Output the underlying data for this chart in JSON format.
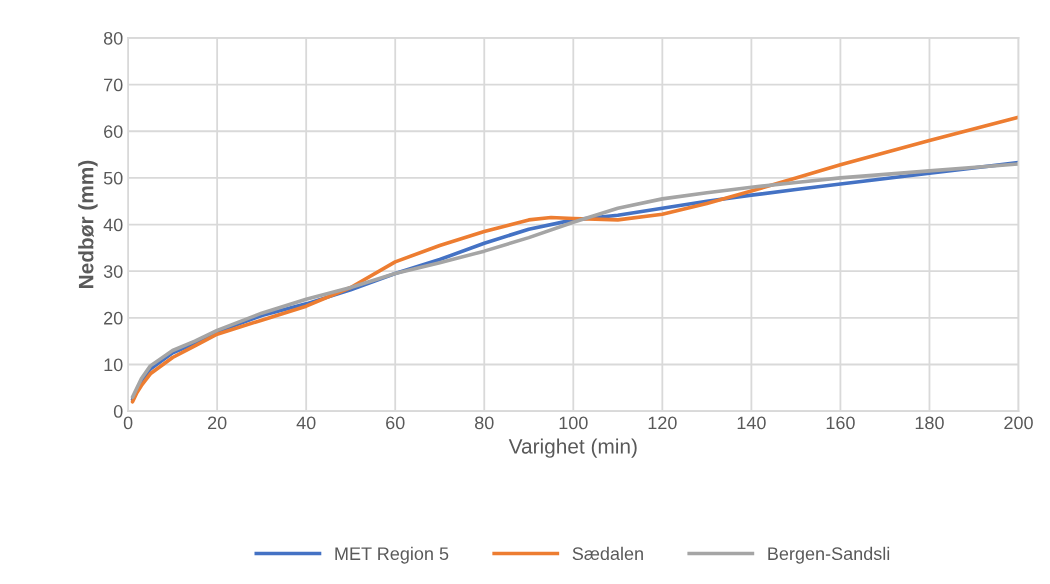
{
  "chart_data": {
    "type": "line",
    "xlabel": "Varighet (min)",
    "ylabel": "Nedbør (mm)",
    "xlim": [
      0,
      200
    ],
    "xticks": [
      0,
      20,
      40,
      60,
      80,
      100,
      120,
      140,
      160,
      180,
      200
    ],
    "ylim": [
      0,
      80
    ],
    "yticks": [
      0,
      10,
      20,
      30,
      40,
      50,
      60,
      70,
      80
    ],
    "grid": true,
    "legend": "bottom",
    "marker": "none",
    "line_style": "solid",
    "series": [
      {
        "name": "MET Region 5",
        "color": "#4472c4",
        "x": [
          1,
          3,
          5,
          10,
          15,
          20,
          30,
          40,
          50,
          60,
          70,
          80,
          90,
          100,
          110,
          120,
          130,
          140,
          150,
          160,
          180,
          200
        ],
        "values": [
          2.5,
          6.5,
          9,
          12.5,
          14.5,
          17,
          20.5,
          23,
          26,
          29.5,
          32.5,
          36,
          39,
          41,
          42,
          43.5,
          45,
          46.3,
          47.5,
          48.7,
          51,
          53.3
        ]
      },
      {
        "name": "Sædalen",
        "color": "#ed7d31",
        "x": [
          1,
          2,
          3,
          5,
          10,
          15,
          20,
          30,
          40,
          50,
          60,
          70,
          80,
          90,
          95,
          100,
          110,
          120,
          130,
          140,
          150,
          160,
          180,
          200
        ],
        "values": [
          2,
          4,
          5.5,
          8,
          11.5,
          14,
          16.5,
          19.5,
          22.5,
          26.5,
          32,
          35.5,
          38.5,
          41,
          41.5,
          41.3,
          41,
          42.2,
          44.5,
          47.2,
          50,
          52.8,
          58,
          63
        ]
      },
      {
        "name": "Bergen-Sandsli",
        "color": "#a5a5a5",
        "x": [
          1,
          2,
          3,
          5,
          10,
          15,
          20,
          30,
          40,
          50,
          60,
          70,
          80,
          90,
          100,
          110,
          120,
          130,
          140,
          150,
          160,
          180,
          200
        ],
        "values": [
          3,
          5,
          7,
          9.7,
          13,
          15,
          17.3,
          21,
          24,
          26.5,
          29.5,
          31.8,
          34.3,
          37.2,
          40.5,
          43.5,
          45.5,
          46.8,
          48,
          49,
          50,
          51.5,
          53
        ]
      }
    ]
  }
}
